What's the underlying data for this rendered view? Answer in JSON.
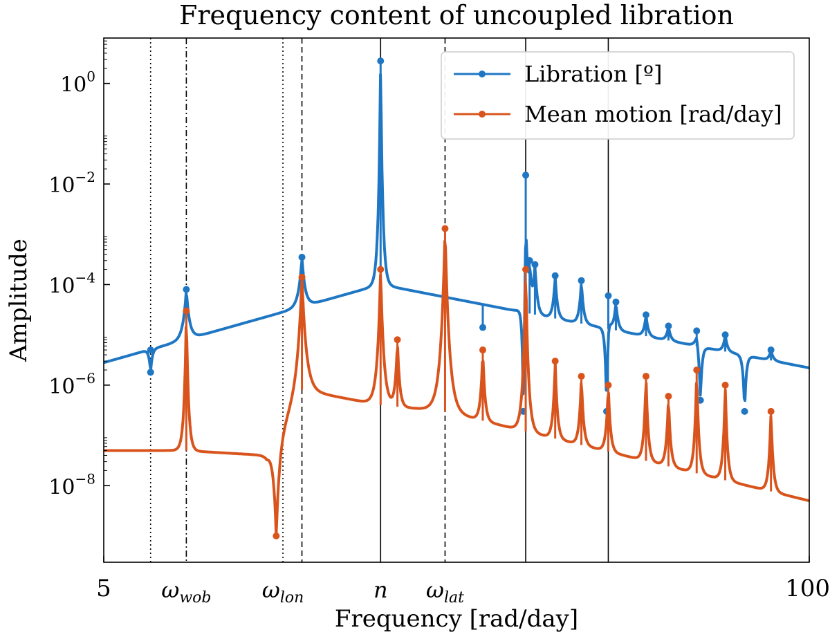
{
  "chart_data": {
    "type": "line",
    "title": "Frequency content of uncoupled libration",
    "xlabel": "Frequency [rad/day]",
    "ylabel": "Amplitude",
    "xscale": "log",
    "yscale": "log",
    "xlim": [
      5,
      100
    ],
    "ylim": [
      3e-10,
      8
    ],
    "x_ticks": [
      {
        "value": 5,
        "label": "5"
      },
      {
        "value": 100,
        "label": "100"
      }
    ],
    "y_ticks": [
      {
        "value": 1,
        "base": "10",
        "exp": "0"
      },
      {
        "value": 0.01,
        "base": "10",
        "exp": "−2"
      },
      {
        "value": 0.0001,
        "base": "10",
        "exp": "−4"
      },
      {
        "value": 1e-06,
        "base": "10",
        "exp": "−6"
      },
      {
        "value": 1e-08,
        "base": "10",
        "exp": "−8"
      }
    ],
    "reference_lines": [
      {
        "x": 6.1,
        "style": "dotted",
        "label": ""
      },
      {
        "x": 7.1,
        "style": "dashdot",
        "label": "ω",
        "sub": "wob"
      },
      {
        "x": 10.7,
        "style": "dotted",
        "label": "ω",
        "sub": "lon"
      },
      {
        "x": 11.6,
        "style": "dashed",
        "label": ""
      },
      {
        "x": 16.2,
        "style": "solid",
        "label": "n",
        "sub": ""
      },
      {
        "x": 21.3,
        "style": "dashed",
        "label": "ω",
        "sub": "lat"
      },
      {
        "x": 30.0,
        "style": "solid",
        "label": ""
      },
      {
        "x": 42.6,
        "style": "solid",
        "label": ""
      }
    ],
    "series": [
      {
        "name": "Libration [º]",
        "color": "#1f77c4",
        "baseline": {
          "x": [
            5,
            16.2,
            100
          ],
          "y": [
            2.8e-06,
            0.0001,
            2.2e-06
          ]
        },
        "peaks": [
          {
            "x": 6.1,
            "y": 5e-06,
            "w": 0.006
          },
          {
            "x": 7.1,
            "y": 8e-05,
            "w": 0.006
          },
          {
            "x": 11.6,
            "y": 0.00035,
            "w": 0.006
          },
          {
            "x": 16.2,
            "y": 2.8,
            "w": 0.004
          },
          {
            "x": 21.3,
            "y": 4e-05,
            "w": 0.006
          },
          {
            "x": 25.0,
            "y": 1.4e-05,
            "w": 0.005
          },
          {
            "x": 30.0,
            "y": 0.015,
            "w": 0.004
          },
          {
            "x": 30.5,
            "y": 0.0003,
            "w": 0.004
          },
          {
            "x": 31.2,
            "y": 0.00025,
            "w": 0.004
          },
          {
            "x": 34.0,
            "y": 0.00015,
            "w": 0.004
          },
          {
            "x": 38.0,
            "y": 0.00012,
            "w": 0.004
          },
          {
            "x": 42.6,
            "y": 6e-05,
            "w": 0.004
          },
          {
            "x": 44.0,
            "y": 4.5e-05,
            "w": 0.004
          },
          {
            "x": 50.0,
            "y": 2.5e-05,
            "w": 0.004
          },
          {
            "x": 55.0,
            "y": 1.5e-05,
            "w": 0.004
          },
          {
            "x": 62.0,
            "y": 1.2e-05,
            "w": 0.004
          },
          {
            "x": 70.0,
            "y": 1e-05,
            "w": 0.004
          },
          {
            "x": 85.0,
            "y": 5e-06,
            "w": 0.004
          }
        ],
        "dips": [
          {
            "x": 6.1,
            "y": 1.8e-06,
            "w": 0.003
          },
          {
            "x": 29.7,
            "y": 3e-07,
            "w": 0.003
          },
          {
            "x": 42.3,
            "y": 3e-07,
            "w": 0.003
          },
          {
            "x": 63.0,
            "y": 5e-07,
            "w": 0.003
          },
          {
            "x": 76.0,
            "y": 3e-07,
            "w": 0.003
          }
        ]
      },
      {
        "name": "Mean motion [rad/day]",
        "color": "#d9541d",
        "baseline": {
          "x": [
            5,
            7.0,
            10.0,
            11.6,
            16.2,
            21.3,
            30.0,
            100
          ],
          "y": [
            5e-08,
            5e-08,
            4e-08,
            8e-07,
            4e-07,
            3e-07,
            1.2e-07,
            5e-09
          ]
        },
        "peaks": [
          {
            "x": 7.1,
            "y": 3e-05,
            "w": 0.004
          },
          {
            "x": 11.6,
            "y": 0.00014,
            "w": 0.008
          },
          {
            "x": 16.2,
            "y": 0.0002,
            "w": 0.006
          },
          {
            "x": 17.4,
            "y": 8e-06,
            "w": 0.004
          },
          {
            "x": 21.3,
            "y": 0.0013,
            "w": 0.008
          },
          {
            "x": 25.0,
            "y": 5e-06,
            "w": 0.004
          },
          {
            "x": 30.0,
            "y": 0.0002,
            "w": 0.005
          },
          {
            "x": 34.0,
            "y": 3e-06,
            "w": 0.004
          },
          {
            "x": 38.0,
            "y": 1.5e-06,
            "w": 0.004
          },
          {
            "x": 42.6,
            "y": 1e-06,
            "w": 0.004
          },
          {
            "x": 50.0,
            "y": 1.5e-06,
            "w": 0.004
          },
          {
            "x": 55.0,
            "y": 6e-07,
            "w": 0.004
          },
          {
            "x": 62.0,
            "y": 2e-06,
            "w": 0.004
          },
          {
            "x": 70.0,
            "y": 1e-06,
            "w": 0.004
          },
          {
            "x": 85.0,
            "y": 3e-07,
            "w": 0.004
          }
        ],
        "dips": [
          {
            "x": 10.4,
            "y": 1e-09,
            "w": 0.006
          }
        ]
      }
    ]
  }
}
